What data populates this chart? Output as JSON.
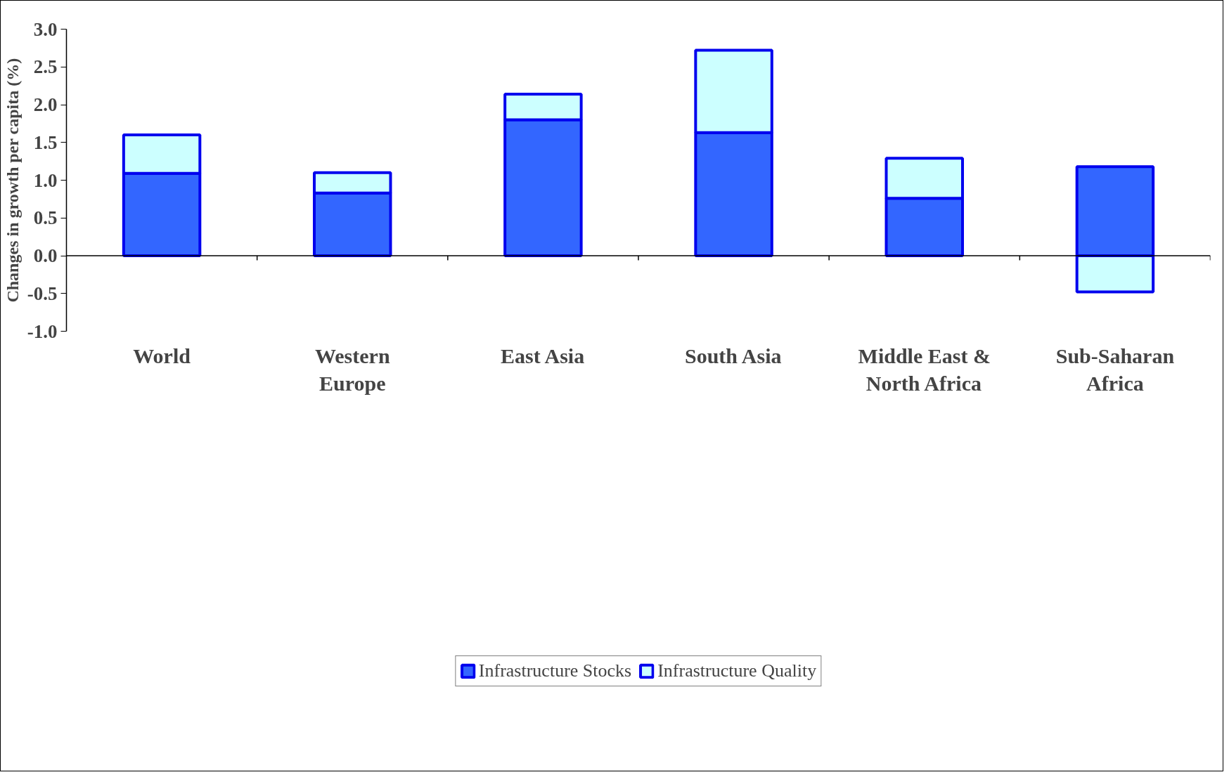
{
  "chart_data": {
    "type": "bar",
    "stacked": true,
    "ylabel": "Changes in growth per capita (%)",
    "categories": [
      "World",
      "Western Europe",
      "East Asia",
      "South Asia",
      "Middle East & North Africa",
      "Sub-Saharan Africa"
    ],
    "series": [
      {
        "name": "Infrastructure Stocks",
        "color": "#3366ff",
        "values": [
          1.09,
          0.83,
          1.8,
          1.63,
          0.76,
          1.18
        ]
      },
      {
        "name": "Infrastructure Quality",
        "color": "#ccffff",
        "values": [
          0.51,
          0.27,
          0.34,
          1.09,
          0.53,
          -0.48
        ]
      }
    ],
    "ylim": [
      -1.0,
      3.0
    ],
    "yticks": [
      {
        "value": -1.0,
        "label": "-1.0"
      },
      {
        "value": -0.5,
        "label": "-0.5"
      },
      {
        "value": 0,
        "label": "0.0"
      },
      {
        "value": 0.5,
        "label": "0.5"
      },
      {
        "value": 1.0,
        "label": "1.0"
      },
      {
        "value": 1.5,
        "label": "1.5"
      },
      {
        "value": 2.0,
        "label": "2.0"
      },
      {
        "value": 2.5,
        "label": "2.5"
      },
      {
        "value": 3.0,
        "label": "3.0"
      }
    ],
    "legend": "bottom"
  }
}
